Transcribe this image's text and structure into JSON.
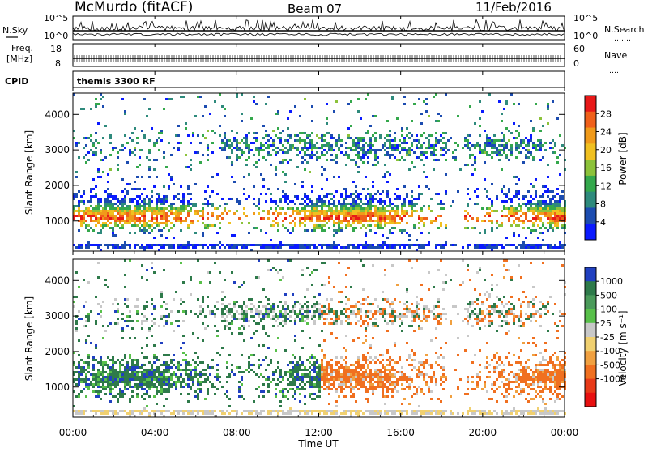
{
  "header": {
    "station": "McMurdo (fitACF)",
    "beam": "Beam 07",
    "date": "11/Feb/2016"
  },
  "noise_panel": {
    "left_label": "N.Sky",
    "right_label": "N.Search",
    "right_dots": "․․․․․․․",
    "left_ticks": [
      "10^5",
      "10^0"
    ],
    "right_ticks": [
      "10^5",
      "10^0"
    ]
  },
  "freq_panel": {
    "left_label_1": "Freq.",
    "left_label_2": "[MHz]",
    "right_label": "Nave",
    "right_dots": "․․․․",
    "left_ticks": [
      "18",
      "8"
    ],
    "right_ticks": [
      "60",
      "0"
    ]
  },
  "cpid_panel": {
    "label": "CPID",
    "program": "themis 3300 RF"
  },
  "x_axis": {
    "title": "Time UT",
    "ticks": [
      "00:00",
      "04:00",
      "08:00",
      "12:00",
      "16:00",
      "20:00",
      "00:00"
    ]
  },
  "chart_data": [
    {
      "type": "heatmap",
      "title": "",
      "xlabel": "",
      "ylabel": "Slant Range [km]",
      "yticks": [
        "1000",
        "2000",
        "3000",
        "4000"
      ],
      "ylim": [
        150,
        4600
      ],
      "xlim": [
        "00:00",
        "00:00"
      ],
      "colorbar": {
        "label": "Power [dB]",
        "ticks": [
          "4",
          "8",
          "12",
          "16",
          "20",
          "24",
          "28"
        ],
        "range": [
          0,
          32
        ],
        "colors": [
          "#0a1aff",
          "#1c4cb0",
          "#2e8a7c",
          "#34a84c",
          "#8cc23a",
          "#f0c020",
          "#f09a1a",
          "#f0601a",
          "#e81818"
        ]
      }
    },
    {
      "type": "heatmap",
      "title": "",
      "xlabel": "Time UT",
      "ylabel": "Slant Range [km]",
      "yticks": [
        "1000",
        "2000",
        "3000",
        "4000"
      ],
      "ylim": [
        150,
        4600
      ],
      "xlim": [
        "00:00",
        "00:00"
      ],
      "colorbar": {
        "label": "Velocity [m s⁻¹]",
        "ticks": [
          "1000",
          "500",
          "100",
          "25",
          "-25",
          "-100",
          "-500",
          "-1000"
        ],
        "colors": [
          "#2040c0",
          "#2e7a4a",
          "#4a9a5a",
          "#58c04a",
          "#c8c8c8",
          "#f0d070",
          "#f0a040",
          "#f07020",
          "#e83a18",
          "#e81010"
        ]
      }
    }
  ]
}
